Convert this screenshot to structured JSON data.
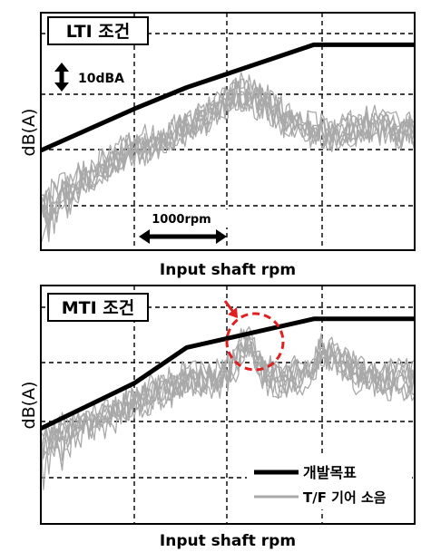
{
  "chart_data": [
    {
      "type": "line",
      "panel_label": "LTI 조건",
      "xlabel": "Input shaft rpm",
      "ylabel": "dB(A)",
      "annotations": {
        "db_scale": "10dBA",
        "rpm_scale": "1000rpm"
      },
      "grid": true,
      "ylim": [
        0,
        1
      ],
      "xlim": [
        0,
        1
      ],
      "series": [
        {
          "role": "target",
          "color": "#000000",
          "x": [
            0,
            0.25,
            0.39,
            0.73,
            1.0
          ],
          "y": [
            0.42,
            0.595,
            0.685,
            0.865,
            0.865
          ]
        },
        {
          "role": "noise",
          "color": "#a9a9a9",
          "count": 8,
          "x": [
            0,
            0.05,
            0.1,
            0.15,
            0.2,
            0.25,
            0.3,
            0.35,
            0.4,
            0.45,
            0.5,
            0.55,
            0.6,
            0.65,
            0.7,
            0.75,
            0.8,
            0.85,
            0.9,
            0.95,
            1.0
          ],
          "y": [
            0.18,
            0.26,
            0.3,
            0.35,
            0.4,
            0.45,
            0.46,
            0.5,
            0.55,
            0.58,
            0.66,
            0.68,
            0.63,
            0.57,
            0.53,
            0.52,
            0.5,
            0.54,
            0.55,
            0.52,
            0.52
          ]
        }
      ]
    },
    {
      "type": "line",
      "panel_label": "MTI 조건",
      "xlabel": "Input shaft rpm",
      "ylabel": "dB(A)",
      "legend": {
        "placement": "bottom-right",
        "entries": [
          "개발목표",
          "T/F 기어 소음"
        ]
      },
      "grid": true,
      "ylim": [
        0,
        1
      ],
      "xlim": [
        0,
        1
      ],
      "highlight": {
        "shape": "dashed-circle",
        "color": "#e02020",
        "x": 0.55,
        "y": 0.74
      },
      "series": [
        {
          "role": "target",
          "color": "#000000",
          "x": [
            0,
            0.25,
            0.39,
            0.73,
            1.0
          ],
          "y": [
            0.4,
            0.59,
            0.74,
            0.86,
            0.86
          ]
        },
        {
          "role": "noise",
          "color": "#a9a9a9",
          "count": 8,
          "x": [
            0,
            0.05,
            0.1,
            0.15,
            0.2,
            0.25,
            0.3,
            0.35,
            0.4,
            0.45,
            0.5,
            0.55,
            0.6,
            0.65,
            0.7,
            0.75,
            0.8,
            0.85,
            0.9,
            0.95,
            1.0
          ],
          "y": [
            0.32,
            0.38,
            0.4,
            0.42,
            0.46,
            0.5,
            0.54,
            0.57,
            0.6,
            0.6,
            0.62,
            0.76,
            0.62,
            0.6,
            0.62,
            0.7,
            0.68,
            0.62,
            0.6,
            0.6,
            0.6
          ]
        }
      ]
    }
  ]
}
